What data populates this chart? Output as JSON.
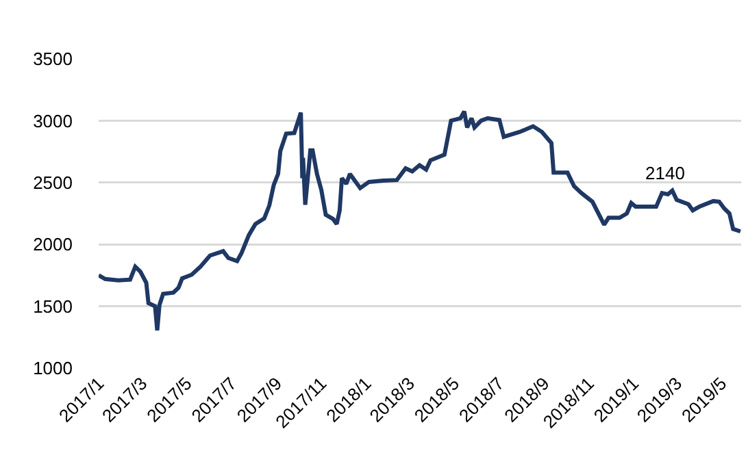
{
  "chart_data": {
    "type": "line",
    "x": [
      "2017-01-01",
      "2017-01-10",
      "2017-01-28",
      "2017-02-13",
      "2017-02-20",
      "2017-02-27",
      "2017-03-07",
      "2017-03-10",
      "2017-03-19",
      "2017-03-22",
      "2017-03-25",
      "2017-03-30",
      "2017-04-13",
      "2017-04-20",
      "2017-04-25",
      "2017-05-08",
      "2017-05-20",
      "2017-06-02",
      "2017-06-20",
      "2017-06-27",
      "2017-07-09",
      "2017-07-15",
      "2017-07-25",
      "2017-08-03",
      "2017-08-15",
      "2017-08-22",
      "2017-08-28",
      "2017-09-03",
      "2017-09-06",
      "2017-09-14",
      "2017-09-25",
      "2017-10-04",
      "2017-10-06",
      "2017-10-07",
      "2017-10-10",
      "2017-10-17",
      "2017-10-20",
      "2017-10-26",
      "2017-11-01",
      "2017-11-07",
      "2017-11-17",
      "2017-11-22",
      "2017-11-26",
      "2017-11-29",
      "2017-12-05",
      "2017-12-10",
      "2017-12-24",
      "2018-01-05",
      "2018-01-24",
      "2018-02-12",
      "2018-02-24",
      "2018-03-05",
      "2018-03-15",
      "2018-03-24",
      "2018-03-30",
      "2018-04-18",
      "2018-04-27",
      "2018-05-10",
      "2018-05-15",
      "2018-05-19",
      "2018-05-25",
      "2018-05-29",
      "2018-06-07",
      "2018-06-16",
      "2018-07-02",
      "2018-07-08",
      "2018-07-30",
      "2018-08-17",
      "2018-08-29",
      "2018-09-11",
      "2018-09-14",
      "2018-10-03",
      "2018-10-12",
      "2018-10-22",
      "2018-11-06",
      "2018-11-22",
      "2018-11-28",
      "2018-12-13",
      "2018-12-23",
      "2018-12-29",
      "2019-01-04",
      "2019-02-01",
      "2019-02-09",
      "2019-02-17",
      "2019-02-23",
      "2019-03-01",
      "2019-03-17",
      "2019-03-23",
      "2019-04-01",
      "2019-04-20",
      "2019-04-28",
      "2019-05-05",
      "2019-05-12",
      "2019-05-17",
      "2019-05-27"
    ],
    "series": [
      {
        "color": "#1f3864",
        "values": [
          1750,
          1720,
          1710,
          1715,
          1820,
          1780,
          1690,
          1525,
          1500,
          1305,
          1510,
          1600,
          1610,
          1650,
          1725,
          1755,
          1820,
          1910,
          1945,
          1890,
          1865,
          1930,
          2075,
          2165,
          2210,
          2315,
          2480,
          2570,
          2755,
          2895,
          2900,
          3065,
          2535,
          2700,
          2320,
          2760,
          2760,
          2570,
          2440,
          2240,
          2205,
          2165,
          2275,
          2535,
          2490,
          2570,
          2455,
          2505,
          2515,
          2520,
          2615,
          2590,
          2640,
          2605,
          2680,
          2725,
          3000,
          3020,
          3075,
          2945,
          3020,
          2945,
          3000,
          3020,
          3005,
          2870,
          2910,
          2955,
          2910,
          2820,
          2580,
          2580,
          2470,
          2415,
          2345,
          2160,
          2215,
          2215,
          2250,
          2335,
          2305,
          2305,
          2415,
          2405,
          2435,
          2360,
          2325,
          2275,
          2305,
          2350,
          2345,
          2290,
          2250,
          2125,
          2105
        ]
      }
    ],
    "xlim": [
      "2017-01-01",
      "2019-05-28"
    ],
    "xticks": [
      {
        "value": "2017-01-01",
        "label": "2017/1"
      },
      {
        "value": "2017-03-01",
        "label": "2017/3"
      },
      {
        "value": "2017-05-01",
        "label": "2017/5"
      },
      {
        "value": "2017-07-01",
        "label": "2017/7"
      },
      {
        "value": "2017-09-01",
        "label": "2017/9"
      },
      {
        "value": "2017-11-01",
        "label": "2017/11"
      },
      {
        "value": "2018-01-01",
        "label": "2018/1"
      },
      {
        "value": "2018-03-01",
        "label": "2018/3"
      },
      {
        "value": "2018-05-01",
        "label": "2018/5"
      },
      {
        "value": "2018-07-01",
        "label": "2018/7"
      },
      {
        "value": "2018-09-01",
        "label": "2018/9"
      },
      {
        "value": "2018-11-01",
        "label": "2018/11"
      },
      {
        "value": "2019-01-01",
        "label": "2019/1"
      },
      {
        "value": "2019-03-01",
        "label": "2019/3"
      },
      {
        "value": "2019-05-01",
        "label": "2019/5"
      }
    ],
    "ylim": [
      1000,
      3500
    ],
    "yticks": [
      1000,
      1500,
      2000,
      2500,
      3000,
      3500
    ],
    "grid": "y",
    "marker": "none",
    "line_style": "solid",
    "annotations": [
      "2140"
    ]
  }
}
